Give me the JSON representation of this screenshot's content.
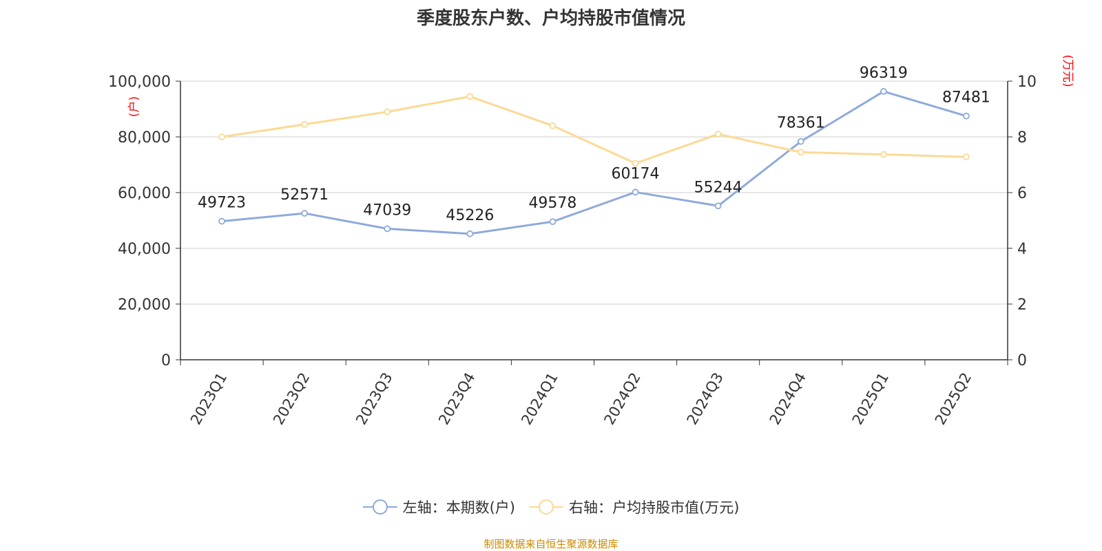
{
  "chart_data": {
    "type": "line",
    "title": "季度股东户数、户均持股市值情况",
    "categories": [
      "2023Q1",
      "2023Q2",
      "2023Q3",
      "2023Q4",
      "2024Q1",
      "2024Q2",
      "2024Q3",
      "2024Q4",
      "2025Q1",
      "2025Q2"
    ],
    "series": [
      {
        "name": "左轴：本期数(户)",
        "axis": "left",
        "color": "#8eaadb",
        "values": [
          49723,
          52571,
          47039,
          45226,
          49578,
          60174,
          55244,
          78361,
          96319,
          87481
        ],
        "data_labels": [
          "49723",
          "52571",
          "47039",
          "45226",
          "49578",
          "60174",
          "55244",
          "78361",
          "96319",
          "87481"
        ]
      },
      {
        "name": "右轴：户均持股市值(万元)",
        "axis": "right",
        "color": "#fcd994",
        "values": [
          8.0,
          8.45,
          8.9,
          9.45,
          8.4,
          7.05,
          8.1,
          7.45,
          7.37,
          7.28
        ]
      }
    ],
    "left_axis": {
      "label": "(户)",
      "ylim": [
        0,
        100000
      ],
      "ticks": [
        0,
        20000,
        40000,
        60000,
        80000,
        100000
      ],
      "tick_labels": [
        "0",
        "20,000",
        "40,000",
        "60,000",
        "80,000",
        "100,000"
      ]
    },
    "right_axis": {
      "label": "(万元)",
      "ylim": [
        0,
        10
      ],
      "ticks": [
        0,
        2,
        4,
        6,
        8,
        10
      ],
      "tick_labels": [
        "0",
        "2",
        "4",
        "6",
        "8",
        "10"
      ]
    },
    "grid": true,
    "legend_position": "bottom-center",
    "axis_label_color": "#ff0000",
    "source_note": "制图数据来自恒生聚源数据库"
  }
}
